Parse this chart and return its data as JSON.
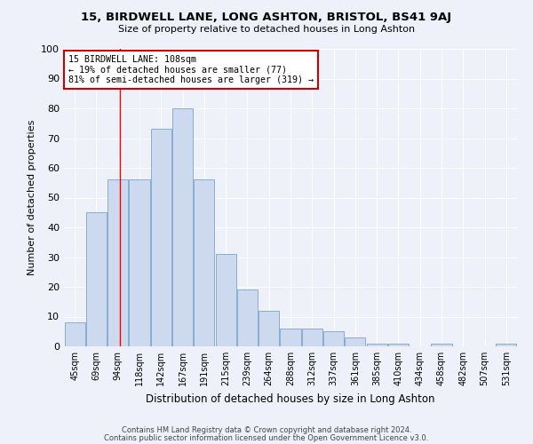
{
  "title": "15, BIRDWELL LANE, LONG ASHTON, BRISTOL, BS41 9AJ",
  "subtitle": "Size of property relative to detached houses in Long Ashton",
  "xlabel": "Distribution of detached houses by size in Long Ashton",
  "ylabel": "Number of detached properties",
  "categories": [
    "45sqm",
    "69sqm",
    "94sqm",
    "118sqm",
    "142sqm",
    "167sqm",
    "191sqm",
    "215sqm",
    "239sqm",
    "264sqm",
    "288sqm",
    "312sqm",
    "337sqm",
    "361sqm",
    "385sqm",
    "410sqm",
    "434sqm",
    "458sqm",
    "482sqm",
    "507sqm",
    "531sqm"
  ],
  "values": [
    8,
    45,
    56,
    56,
    73,
    80,
    56,
    31,
    19,
    12,
    6,
    6,
    5,
    3,
    1,
    1,
    0,
    1,
    0,
    0,
    1
  ],
  "bar_color": "#ccd9ee",
  "bar_edge_color": "#7ba3cc",
  "background_color": "#eef1f9",
  "grid_color": "#ffffff",
  "annotation_text": "15 BIRDWELL LANE: 108sqm\n← 19% of detached houses are smaller (77)\n81% of semi-detached houses are larger (319) →",
  "annotation_box_color": "#ffffff",
  "annotation_box_edge_color": "#cc0000",
  "ylim": [
    0,
    100
  ],
  "yticks": [
    0,
    10,
    20,
    30,
    40,
    50,
    60,
    70,
    80,
    90,
    100
  ],
  "footer_line1": "Contains HM Land Registry data © Crown copyright and database right 2024.",
  "footer_line2": "Contains public sector information licensed under the Open Government Licence v3.0."
}
